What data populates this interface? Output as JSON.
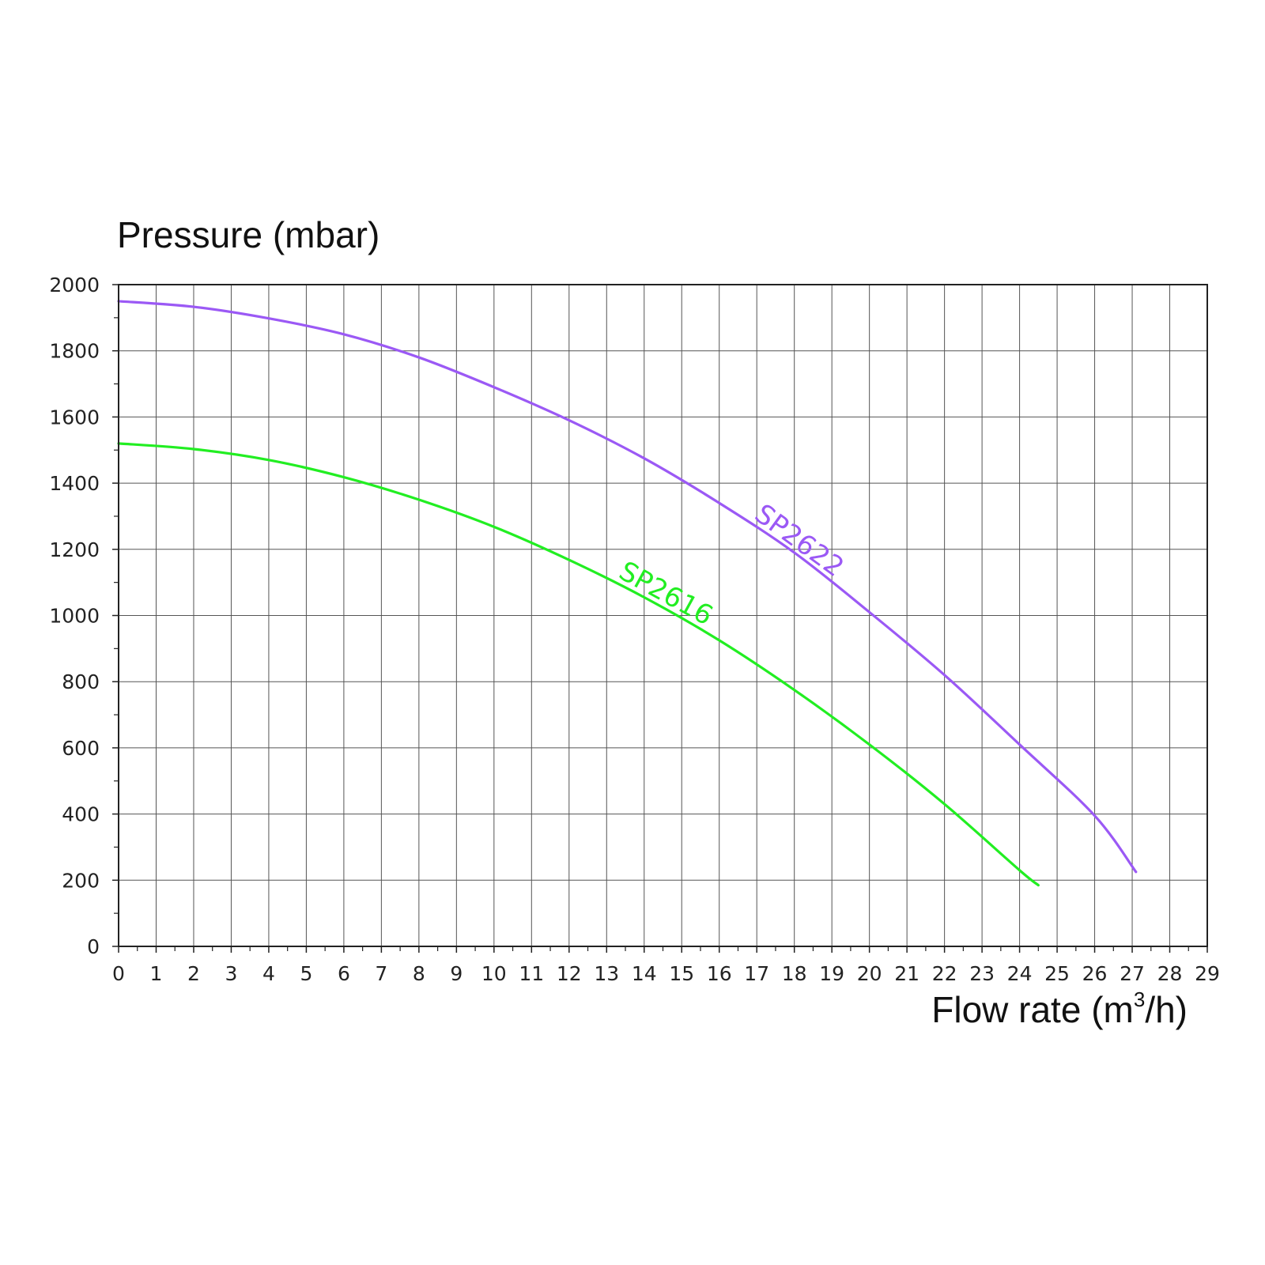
{
  "chart_data": {
    "type": "line",
    "ylabel": "Pressure (mbar)",
    "xlabel_base": "Flow rate (m",
    "xlabel_sup": "3",
    "xlabel_tail": "/h)",
    "xlim": [
      0,
      29
    ],
    "ylim": [
      0,
      2000
    ],
    "x_ticks": [
      0,
      1,
      2,
      3,
      4,
      5,
      6,
      7,
      8,
      9,
      10,
      11,
      12,
      13,
      14,
      15,
      16,
      17,
      18,
      19,
      20,
      21,
      22,
      23,
      24,
      25,
      26,
      27,
      28,
      29
    ],
    "y_ticks": [
      0,
      200,
      400,
      600,
      800,
      1000,
      1200,
      1400,
      1600,
      1800,
      2000
    ],
    "grid": true,
    "legend": "none",
    "series": [
      {
        "name": "SP2622",
        "color": "#9b59f5",
        "label_at": 16.8,
        "points": [
          [
            0,
            1950
          ],
          [
            2,
            1933
          ],
          [
            4,
            1898
          ],
          [
            6,
            1850
          ],
          [
            8,
            1780
          ],
          [
            10,
            1690
          ],
          [
            12,
            1590
          ],
          [
            14,
            1475
          ],
          [
            16,
            1340
          ],
          [
            18,
            1190
          ],
          [
            20,
            1010
          ],
          [
            22,
            820
          ],
          [
            24,
            610
          ],
          [
            26,
            395
          ],
          [
            27.1,
            225
          ]
        ]
      },
      {
        "name": "SP2616",
        "color": "#22ee22",
        "label_at": 13.2,
        "points": [
          [
            0,
            1520
          ],
          [
            2,
            1503
          ],
          [
            4,
            1470
          ],
          [
            6,
            1418
          ],
          [
            8,
            1350
          ],
          [
            10,
            1268
          ],
          [
            12,
            1168
          ],
          [
            14,
            1055
          ],
          [
            16,
            925
          ],
          [
            18,
            775
          ],
          [
            20,
            610
          ],
          [
            22,
            430
          ],
          [
            24,
            230
          ],
          [
            24.5,
            185
          ]
        ]
      }
    ]
  }
}
